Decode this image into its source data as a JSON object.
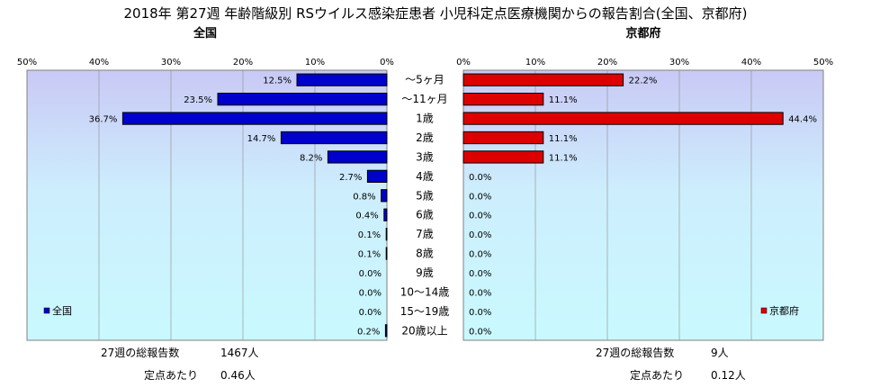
{
  "title": "2018年 第27週 年齢階級別 RSウイルス感染症患者 小児科定点医療機関からの報告割合(全国、京都府)",
  "colors": {
    "national": "#0000cc",
    "kyoto": "#dd0000"
  },
  "chart_data": [
    {
      "type": "bar",
      "orientation": "horizontal",
      "direction": "right-to-left",
      "subtitle": "全国",
      "categories": [
        "～5ヶ月",
        "～11ヶ月",
        "1歳",
        "2歳",
        "3歳",
        "4歳",
        "5歳",
        "6歳",
        "7歳",
        "8歳",
        "9歳",
        "10～14歳",
        "15～19歳",
        "20歳以上"
      ],
      "series": [
        {
          "name": "全国",
          "values": [
            12.5,
            23.5,
            36.7,
            14.7,
            8.2,
            2.7,
            0.8,
            0.4,
            0.1,
            0.1,
            0.0,
            0.0,
            0.0,
            0.2
          ]
        }
      ],
      "data_labels": [
        "12.5%",
        "23.5%",
        "36.7%",
        "14.7%",
        "8.2%",
        "2.7%",
        "0.8%",
        "0.4%",
        "0.1%",
        "0.1%",
        "0.0%",
        "0.0%",
        "0.0%",
        "0.2%"
      ],
      "xlim": [
        0,
        50
      ],
      "ticks": [
        "50%",
        "40%",
        "30%",
        "20%",
        "10%",
        "0%"
      ],
      "grid": true,
      "legend": "bottom-left",
      "legend_label": "全国"
    },
    {
      "type": "bar",
      "orientation": "horizontal",
      "direction": "left-to-right",
      "subtitle": "京都府",
      "categories": [
        "～5ヶ月",
        "～11ヶ月",
        "1歳",
        "2歳",
        "3歳",
        "4歳",
        "5歳",
        "6歳",
        "7歳",
        "8歳",
        "9歳",
        "10～14歳",
        "15～19歳",
        "20歳以上"
      ],
      "series": [
        {
          "name": "京都府",
          "values": [
            22.2,
            11.1,
            44.4,
            11.1,
            11.1,
            0.0,
            0.0,
            0.0,
            0.0,
            0.0,
            0.0,
            0.0,
            0.0,
            0.0
          ]
        }
      ],
      "data_labels": [
        "22.2%",
        "11.1%",
        "44.4%",
        "11.1%",
        "11.1%",
        "0.0%",
        "0.0%",
        "0.0%",
        "0.0%",
        "0.0%",
        "0.0%",
        "0.0%",
        "0.0%",
        "0.0%"
      ],
      "xlim": [
        0,
        50
      ],
      "ticks": [
        "0%",
        "10%",
        "20%",
        "30%",
        "40%",
        "50%"
      ],
      "grid": true,
      "legend": "bottom-right",
      "legend_label": "京都府"
    }
  ],
  "footer": {
    "national": {
      "total_label": "27週の総報告数",
      "total_value": "1467人",
      "per_label": "定点あたり",
      "per_value": "0.46人"
    },
    "kyoto": {
      "total_label": "27週の総報告数",
      "total_value": "9人",
      "per_label": "定点あたり",
      "per_value": "0.12人"
    }
  }
}
